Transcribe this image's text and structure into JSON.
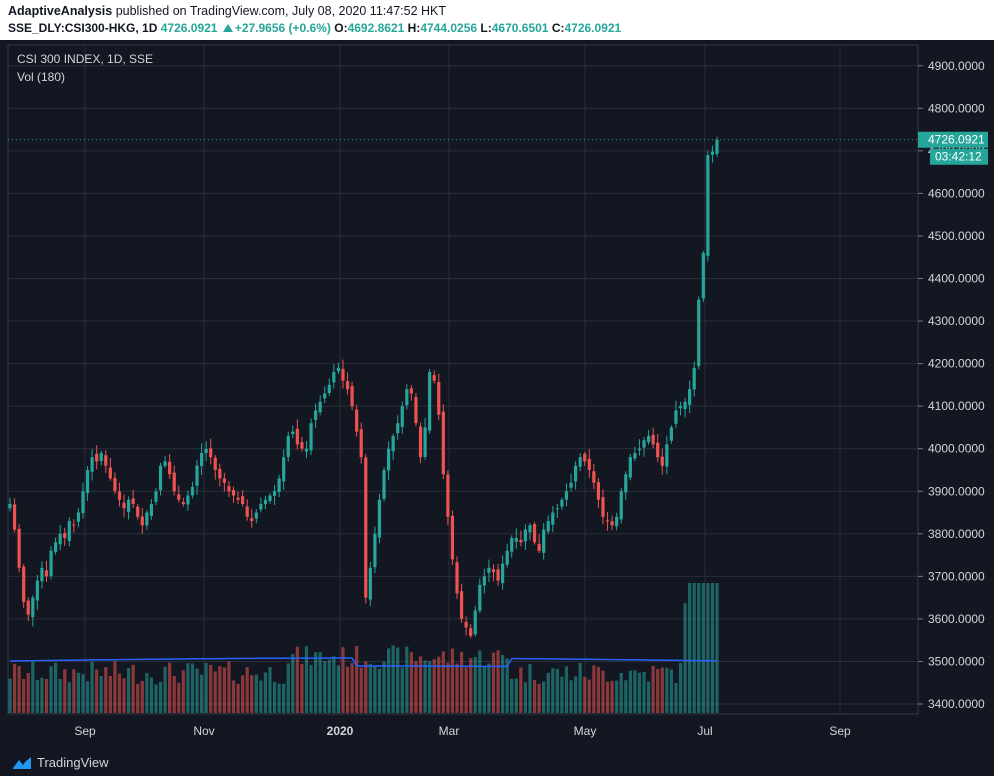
{
  "header": {
    "author": "AdaptiveAnalysis",
    "published_text": "published on TradingView.com, July 08, 2020 11:47:52 HKT",
    "symbol": "SSE_DLY:CSI300-HKG, 1D",
    "last": "4726.0921",
    "change": "+27.9656 (+0.6%)",
    "o_label": "O:",
    "o": "4692.8621",
    "h_label": "H:",
    "h": "4744.0256",
    "l_label": "L:",
    "l": "4670.6501",
    "c_label": "C:",
    "c": "4726.0921"
  },
  "legend": {
    "title": "CSI 300 INDEX, 1D, SSE",
    "vol": "Vol (180)"
  },
  "price_tag": {
    "price": "4726.0921",
    "countdown": "03:42:12"
  },
  "footer": {
    "brand": "TradingView",
    "logo_icon": "tradingview-logo-icon"
  },
  "colors": {
    "up": "#26a69a",
    "down": "#ef5350",
    "bg": "#131722",
    "grid": "#2a2e39",
    "ma": "#2962ff"
  },
  "chart_data": {
    "type": "candlestick",
    "title": "CSI 300 INDEX, 1D, SSE",
    "ylim": [
      3380,
      4960
    ],
    "yticks": [
      "3400.0000",
      "3500.0000",
      "3600.0000",
      "3700.0000",
      "3800.0000",
      "3900.0000",
      "4000.0000",
      "4100.0000",
      "4200.0000",
      "4300.0000",
      "4400.0000",
      "4500.0000",
      "4600.0000",
      "4700.0000",
      "4800.0000",
      "4900.0000"
    ],
    "xticks": [
      "Sep",
      "Nov",
      "2020",
      "Mar",
      "May",
      "Jul",
      "Sep"
    ],
    "grid": true,
    "closes": [
      3870,
      3810,
      3720,
      3640,
      3610,
      3650,
      3690,
      3720,
      3700,
      3760,
      3780,
      3800,
      3790,
      3830,
      3820,
      3850,
      3900,
      3950,
      3980,
      3970,
      3990,
      3960,
      3930,
      3900,
      3880,
      3860,
      3880,
      3870,
      3840,
      3820,
      3850,
      3870,
      3900,
      3960,
      3970,
      3940,
      3900,
      3880,
      3870,
      3890,
      3910,
      3960,
      3990,
      4000,
      3980,
      3950,
      3930,
      3920,
      3900,
      3890,
      3880,
      3870,
      3840,
      3830,
      3850,
      3870,
      3880,
      3890,
      3900,
      3930,
      3980,
      4030,
      4040,
      4010,
      4000,
      4000,
      4060,
      4090,
      4110,
      4130,
      4150,
      4180,
      4190,
      4160,
      4140,
      4100,
      4040,
      3980,
      3650,
      3720,
      3800,
      3880,
      3950,
      4000,
      4030,
      4060,
      4100,
      4140,
      4130,
      4060,
      3980,
      4050,
      4180,
      4160,
      4080,
      3940,
      3840,
      3740,
      3660,
      3600,
      3580,
      3560,
      3620,
      3680,
      3700,
      3720,
      3710,
      3690,
      3730,
      3760,
      3790,
      3790,
      3780,
      3810,
      3820,
      3780,
      3760,
      3810,
      3830,
      3850,
      3860,
      3880,
      3900,
      3920,
      3960,
      3980,
      3970,
      3950,
      3920,
      3880,
      3840,
      3830,
      3820,
      3840,
      3900,
      3940,
      3980,
      3990,
      4000,
      4020,
      4030,
      4010,
      3980,
      3960,
      4010,
      4050,
      4090,
      4100,
      4110,
      4140,
      4190,
      4350,
      4460,
      4690,
      4698,
      4726
    ],
    "volume": {
      "series_name": "Vol (180)",
      "ma_period": 180
    }
  }
}
